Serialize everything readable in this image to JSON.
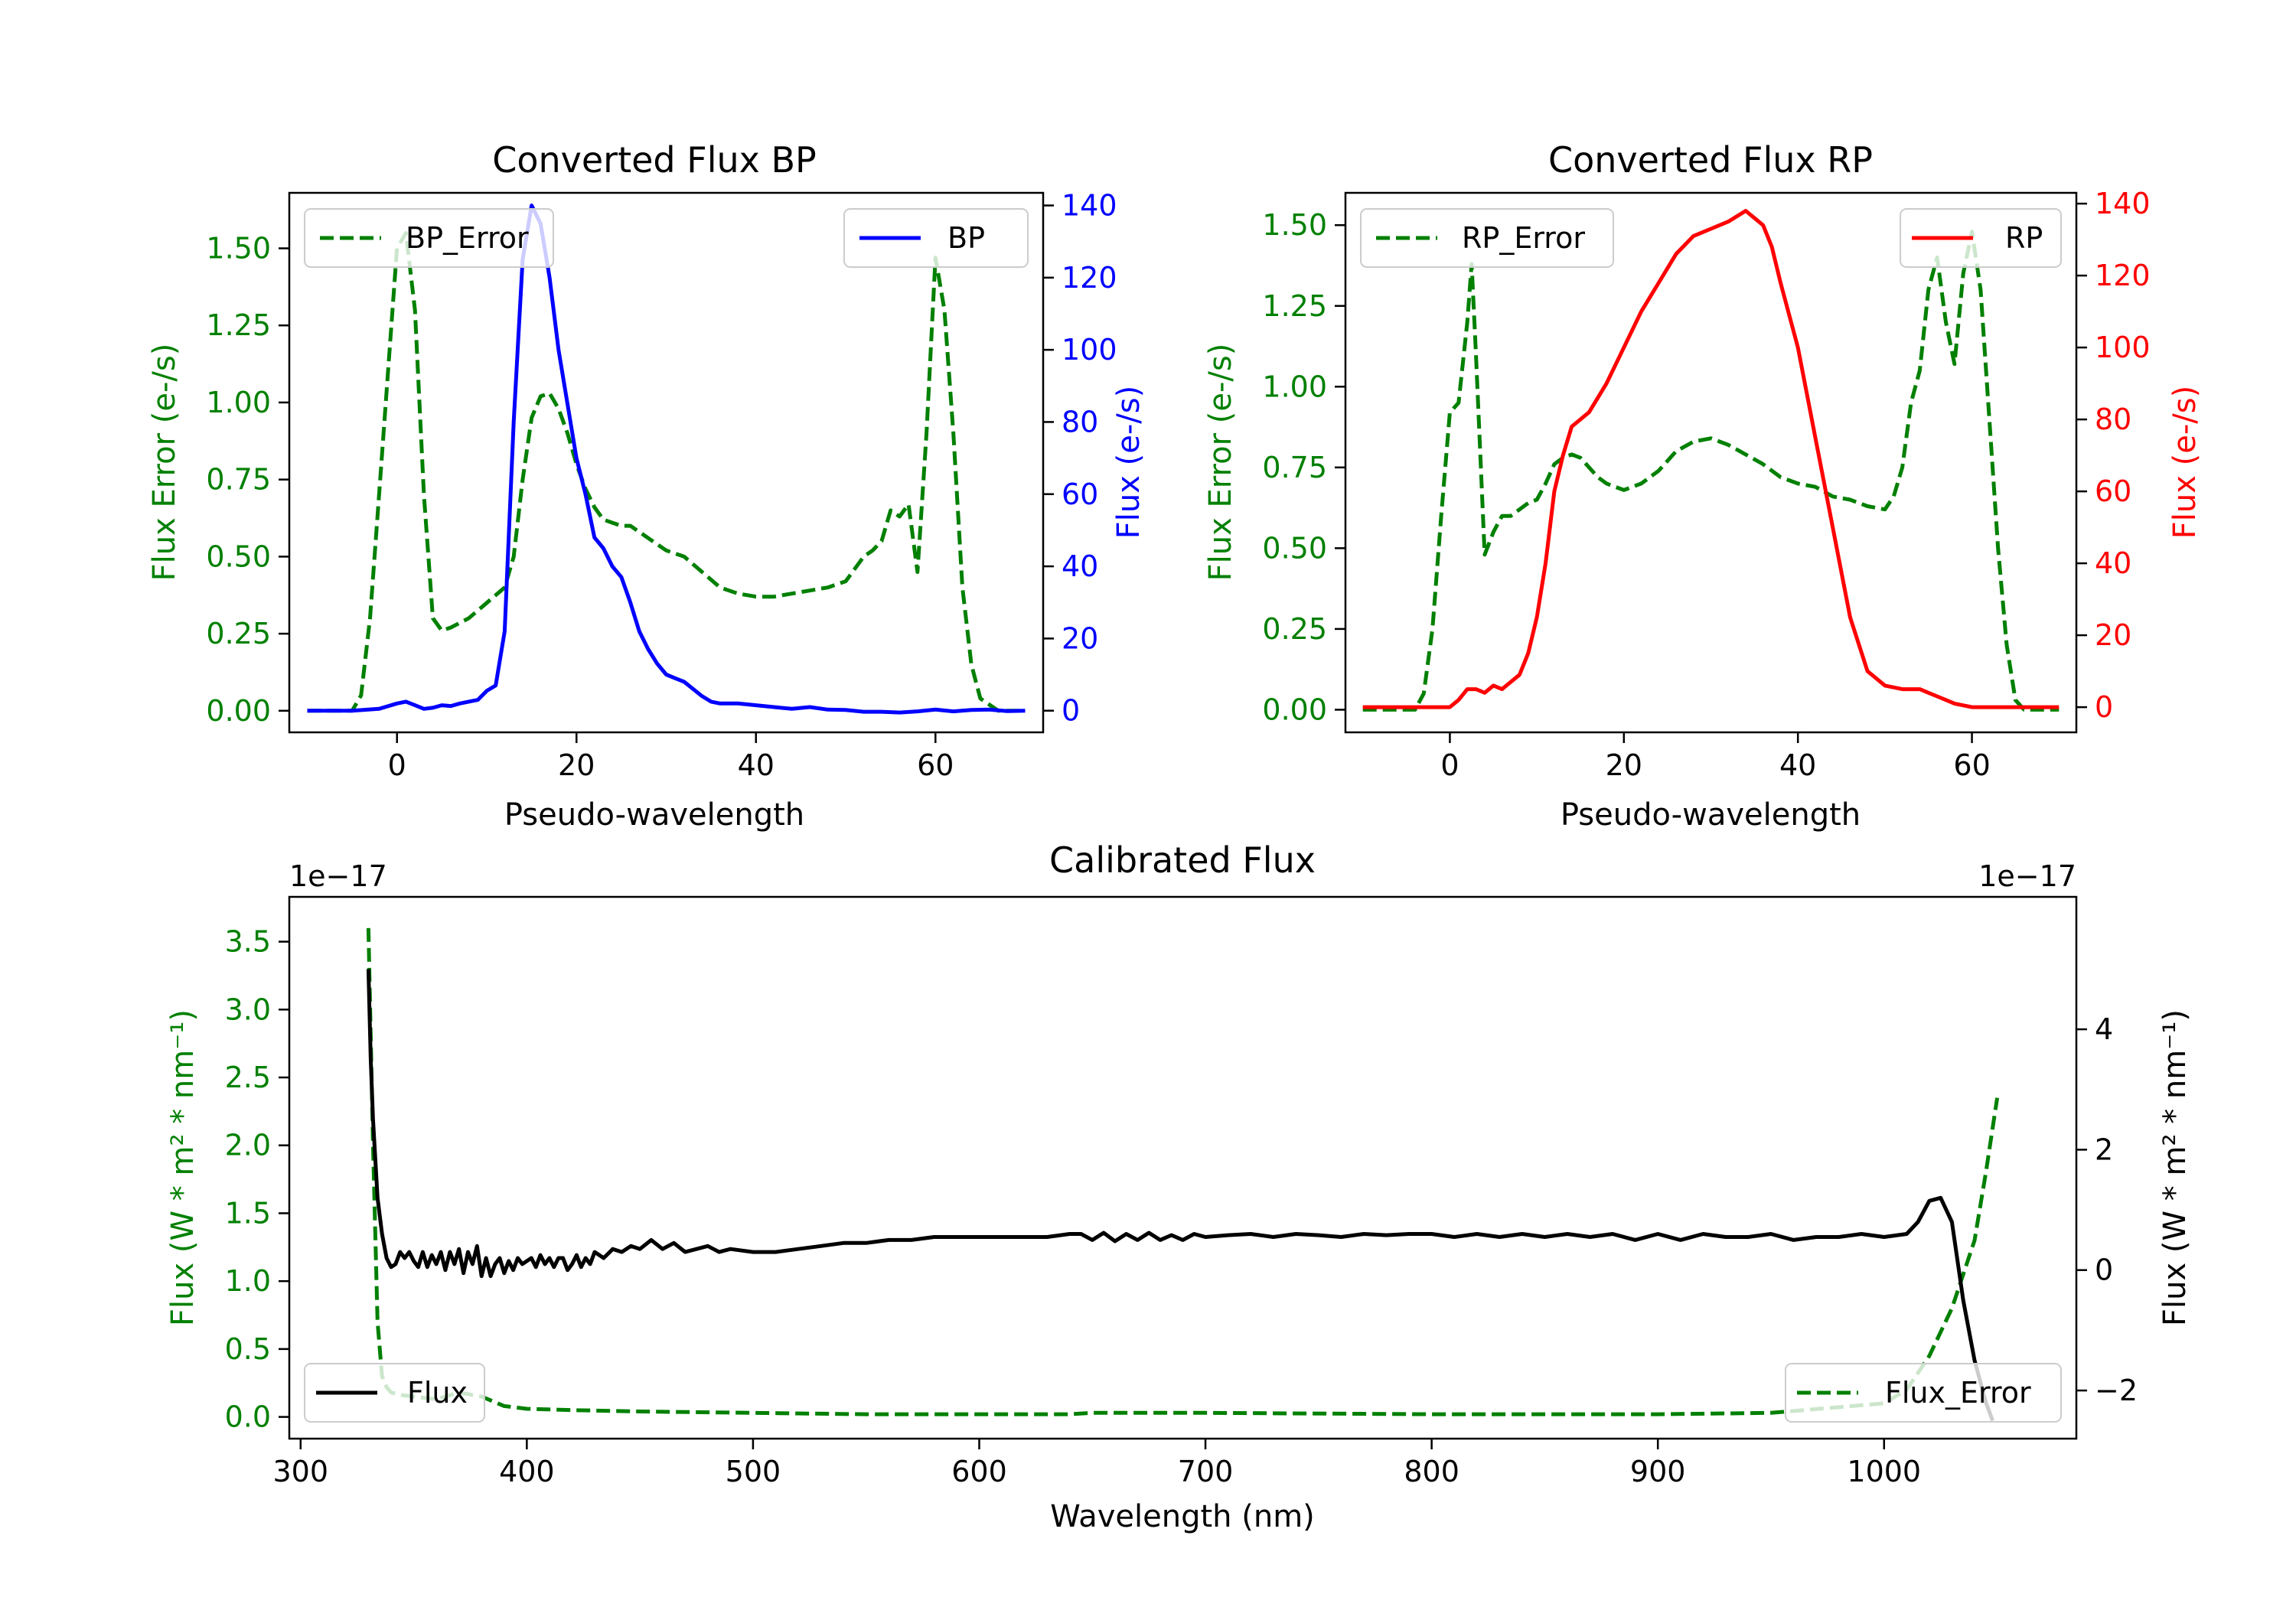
{
  "chart_data": [
    {
      "id": "bp",
      "type": "line",
      "title": "Converted Flux BP",
      "xlabel": "Pseudo-wavelength",
      "xlim": [
        -12,
        72
      ],
      "xticks": [
        0,
        20,
        40,
        60
      ],
      "left_axis": {
        "label": "Flux Error (e-/s)",
        "color": "#008000",
        "lim": [
          -0.07,
          1.68
        ],
        "ticks": [
          0.0,
          0.25,
          0.5,
          0.75,
          1.0,
          1.25,
          1.5
        ],
        "tick_labels": [
          "0.00",
          "0.25",
          "0.50",
          "0.75",
          "1.00",
          "1.25",
          "1.50"
        ]
      },
      "right_axis": {
        "label": "Flux (e-/s)",
        "color": "#0000ff",
        "lim": [
          -6,
          143.5
        ],
        "ticks": [
          0,
          20,
          40,
          60,
          80,
          100,
          120,
          140
        ],
        "tick_labels": [
          "0",
          "20",
          "40",
          "60",
          "80",
          "100",
          "120",
          "140"
        ]
      },
      "series": [
        {
          "name": "BP_Error",
          "axis": "left",
          "color": "#008000",
          "dash": true,
          "x": [
            -10,
            -7,
            -5,
            -4,
            -3,
            -2,
            -1,
            0,
            1,
            2,
            3,
            4,
            5,
            6,
            8,
            10,
            12,
            13,
            14,
            15,
            16,
            17,
            18,
            19,
            20,
            21,
            22,
            23,
            24,
            25,
            26,
            27,
            28,
            30,
            32,
            34,
            36,
            38,
            40,
            42,
            44,
            46,
            48,
            50,
            52,
            53,
            54,
            55,
            56,
            57,
            58,
            59,
            60,
            61,
            62,
            63,
            64,
            65,
            67,
            70
          ],
          "y": [
            0,
            0,
            0,
            0.05,
            0.3,
            0.7,
            1.1,
            1.5,
            1.55,
            1.3,
            0.7,
            0.3,
            0.26,
            0.27,
            0.3,
            0.35,
            0.4,
            0.5,
            0.75,
            0.95,
            1.02,
            1.03,
            0.98,
            0.9,
            0.8,
            0.72,
            0.66,
            0.62,
            0.61,
            0.6,
            0.6,
            0.58,
            0.56,
            0.52,
            0.5,
            0.45,
            0.4,
            0.38,
            0.37,
            0.37,
            0.38,
            0.39,
            0.4,
            0.42,
            0.5,
            0.52,
            0.55,
            0.65,
            0.63,
            0.67,
            0.45,
            0.9,
            1.47,
            1.3,
            0.9,
            0.4,
            0.15,
            0.04,
            0,
            0
          ]
        },
        {
          "name": "BP",
          "axis": "right",
          "color": "#0000ff",
          "dash": false,
          "x": [
            -10,
            -5,
            -2,
            0,
            1,
            2,
            3,
            4,
            5,
            6,
            7,
            8,
            9,
            10,
            11,
            12,
            13,
            14,
            15,
            16,
            17,
            18,
            19,
            20,
            21,
            22,
            23,
            24,
            25,
            26,
            27,
            28,
            29,
            30,
            31,
            32,
            33,
            34,
            35,
            36,
            38,
            40,
            42,
            44,
            46,
            48,
            50,
            52,
            54,
            56,
            58,
            60,
            62,
            64,
            66,
            68,
            70
          ],
          "y": [
            0,
            0,
            0.5,
            2,
            2.5,
            1.5,
            0.5,
            0.8,
            1.5,
            1.3,
            2,
            2.5,
            3,
            5.5,
            7,
            22,
            80,
            125,
            140,
            135,
            120,
            100,
            85,
            70,
            60,
            48,
            45,
            40,
            37,
            30,
            22,
            17,
            13,
            10,
            9,
            8,
            6,
            4,
            2.5,
            2,
            2,
            1.5,
            1,
            0.5,
            1,
            0.3,
            0.2,
            -0.3,
            -0.3,
            -0.5,
            -0.2,
            0.3,
            -0.2,
            0.2,
            0.3,
            -0.1,
            0
          ]
        }
      ],
      "legends": [
        {
          "text": "BP_Error",
          "position": "upper-left",
          "series": "BP_Error"
        },
        {
          "text": "BP",
          "position": "upper-right",
          "series": "BP"
        }
      ]
    },
    {
      "id": "rp",
      "type": "line",
      "title": "Converted Flux RP",
      "xlabel": "Pseudo-wavelength",
      "xlim": [
        -12,
        72
      ],
      "xticks": [
        0,
        20,
        40,
        60
      ],
      "left_axis": {
        "label": "Flux Error (e-/s)",
        "color": "#008000",
        "lim": [
          -0.07,
          1.6
        ],
        "ticks": [
          0.0,
          0.25,
          0.5,
          0.75,
          1.0,
          1.25,
          1.5
        ],
        "tick_labels": [
          "0.00",
          "0.25",
          "0.50",
          "0.75",
          "1.00",
          "1.25",
          "1.50"
        ]
      },
      "right_axis": {
        "label": "Flux (e-/s)",
        "color": "#ff0000",
        "lim": [
          -7,
          143
        ],
        "ticks": [
          0,
          20,
          40,
          60,
          80,
          100,
          120,
          140
        ],
        "tick_labels": [
          "0",
          "20",
          "40",
          "60",
          "80",
          "100",
          "120",
          "140"
        ]
      },
      "series": [
        {
          "name": "RP_Error",
          "axis": "left",
          "color": "#008000",
          "dash": true,
          "x": [
            -10,
            -6,
            -4,
            -3,
            -2,
            -1,
            0,
            1,
            2,
            2.5,
            3,
            4,
            5,
            6,
            7,
            8,
            9,
            10,
            11,
            12,
            13,
            14,
            15,
            16,
            17,
            18,
            20,
            22,
            24,
            26,
            28,
            30,
            32,
            34,
            36,
            38,
            40,
            42,
            44,
            46,
            48,
            50,
            51,
            52,
            53,
            54,
            55,
            56,
            57,
            58,
            59,
            60,
            61,
            62,
            63,
            64,
            65,
            66,
            68,
            70
          ],
          "y": [
            0,
            0,
            0,
            0.05,
            0.25,
            0.6,
            0.92,
            0.95,
            1.2,
            1.38,
            1.1,
            0.48,
            0.55,
            0.6,
            0.6,
            0.62,
            0.64,
            0.65,
            0.7,
            0.76,
            0.78,
            0.79,
            0.78,
            0.75,
            0.72,
            0.7,
            0.68,
            0.7,
            0.74,
            0.8,
            0.83,
            0.84,
            0.82,
            0.79,
            0.76,
            0.72,
            0.7,
            0.69,
            0.66,
            0.65,
            0.63,
            0.62,
            0.66,
            0.75,
            0.95,
            1.05,
            1.3,
            1.4,
            1.2,
            1.07,
            1.35,
            1.48,
            1.3,
            0.9,
            0.5,
            0.2,
            0.03,
            0,
            0,
            0
          ]
        },
        {
          "name": "RP",
          "axis": "right",
          "color": "#ff0000",
          "dash": false,
          "x": [
            -10,
            -4,
            -2,
            0,
            1,
            2,
            3,
            4,
            5,
            6,
            7,
            8,
            9,
            10,
            11,
            12,
            13,
            14,
            15,
            16,
            18,
            20,
            22,
            24,
            26,
            28,
            30,
            32,
            34,
            36,
            37,
            38,
            40,
            42,
            44,
            46,
            48,
            50,
            52,
            54,
            55,
            56,
            57,
            58,
            60,
            62,
            64,
            66,
            68,
            70
          ],
          "y": [
            0,
            0,
            0,
            0,
            2,
            5,
            5,
            4,
            6,
            5,
            7,
            9,
            15,
            25,
            40,
            60,
            70,
            78,
            80,
            82,
            90,
            100,
            110,
            118,
            126,
            131,
            133,
            135,
            138,
            134,
            128,
            118,
            100,
            75,
            50,
            25,
            10,
            6,
            5,
            5,
            4,
            3,
            2,
            1,
            0,
            0,
            0,
            0,
            0,
            0
          ]
        }
      ],
      "legends": [
        {
          "text": "RP_Error",
          "position": "upper-left",
          "series": "RP_Error"
        },
        {
          "text": "RP",
          "position": "upper-right",
          "series": "RP"
        }
      ]
    },
    {
      "id": "cal",
      "type": "line",
      "title": "Calibrated Flux",
      "xlabel": "Wavelength (nm)",
      "xlim": [
        295,
        1085
      ],
      "xticks": [
        300,
        400,
        500,
        600,
        700,
        800,
        900,
        1000
      ],
      "left_axis": {
        "label": "Flux (W * m² * nm⁻¹)",
        "color": "#008000",
        "offset_text": "1e−17",
        "lim": [
          -0.16,
          3.83
        ],
        "ticks": [
          0.0,
          0.5,
          1.0,
          1.5,
          2.0,
          2.5,
          3.0,
          3.5
        ],
        "tick_labels": [
          "0.0",
          "0.5",
          "1.0",
          "1.5",
          "2.0",
          "2.5",
          "3.0",
          "3.5"
        ]
      },
      "right_axis": {
        "label": "Flux (W * m² * nm⁻¹)",
        "color": "#000000",
        "offset_text": "1e−17",
        "lim": [
          -2.8,
          6.2
        ],
        "ticks": [
          -2,
          0,
          2,
          4
        ],
        "tick_labels": [
          "−2",
          "0",
          "2",
          "4"
        ]
      },
      "series": [
        {
          "name": "Flux_Error",
          "axis": "left",
          "color": "#008000",
          "dash": true,
          "x": [
            330,
            332,
            334,
            336,
            338,
            340,
            345,
            350,
            360,
            370,
            380,
            390,
            400,
            420,
            450,
            500,
            550,
            600,
            640,
            650,
            700,
            800,
            900,
            950,
            1000,
            1010,
            1020,
            1030,
            1040,
            1045,
            1050
          ],
          "y": [
            3.6,
            2.0,
            0.7,
            0.3,
            0.22,
            0.18,
            0.16,
            0.15,
            0.13,
            0.18,
            0.15,
            0.08,
            0.06,
            0.05,
            0.04,
            0.03,
            0.02,
            0.02,
            0.02,
            0.03,
            0.03,
            0.02,
            0.02,
            0.03,
            0.1,
            0.2,
            0.45,
            0.8,
            1.3,
            1.8,
            2.35
          ]
        },
        {
          "name": "Flux",
          "axis": "right",
          "color": "#000000",
          "dash": false,
          "x": [
            330,
            331,
            332,
            334,
            336,
            338,
            340,
            342,
            344,
            346,
            348,
            350,
            352,
            354,
            356,
            358,
            360,
            362,
            364,
            366,
            368,
            370,
            372,
            374,
            376,
            378,
            380,
            382,
            384,
            386,
            388,
            390,
            392,
            394,
            396,
            398,
            400,
            402,
            404,
            406,
            408,
            410,
            412,
            414,
            416,
            418,
            420,
            422,
            424,
            426,
            428,
            430,
            434,
            438,
            442,
            446,
            450,
            455,
            460,
            465,
            470,
            475,
            480,
            485,
            490,
            500,
            510,
            520,
            530,
            540,
            550,
            560,
            570,
            580,
            590,
            600,
            610,
            620,
            630,
            640,
            645,
            650,
            655,
            660,
            665,
            670,
            675,
            680,
            685,
            690,
            695,
            700,
            710,
            720,
            730,
            740,
            750,
            760,
            770,
            780,
            790,
            800,
            810,
            820,
            830,
            840,
            850,
            860,
            870,
            880,
            890,
            900,
            910,
            920,
            930,
            940,
            950,
            960,
            970,
            980,
            990,
            1000,
            1010,
            1015,
            1020,
            1025,
            1030,
            1035,
            1040,
            1045,
            1048
          ],
          "y": [
            5.0,
            3.5,
            2.5,
            1.2,
            0.6,
            0.2,
            0.05,
            0.1,
            0.3,
            0.2,
            0.3,
            0.15,
            0.05,
            0.3,
            0.05,
            0.25,
            0.1,
            0.3,
            0.0,
            0.3,
            0.1,
            0.35,
            -0.05,
            0.3,
            0.1,
            0.4,
            -0.1,
            0.2,
            -0.1,
            0.1,
            0.2,
            -0.05,
            0.15,
            0.0,
            0.2,
            0.1,
            0.15,
            0.2,
            0.05,
            0.25,
            0.1,
            0.2,
            0.05,
            0.2,
            0.2,
            0.0,
            0.1,
            0.25,
            0.05,
            0.2,
            0.1,
            0.3,
            0.2,
            0.35,
            0.3,
            0.4,
            0.35,
            0.5,
            0.35,
            0.45,
            0.3,
            0.35,
            0.4,
            0.3,
            0.35,
            0.3,
            0.3,
            0.35,
            0.4,
            0.45,
            0.45,
            0.5,
            0.5,
            0.55,
            0.55,
            0.55,
            0.55,
            0.55,
            0.55,
            0.6,
            0.6,
            0.5,
            0.62,
            0.48,
            0.6,
            0.5,
            0.62,
            0.5,
            0.58,
            0.5,
            0.6,
            0.55,
            0.58,
            0.6,
            0.55,
            0.6,
            0.58,
            0.55,
            0.6,
            0.58,
            0.6,
            0.6,
            0.55,
            0.6,
            0.55,
            0.6,
            0.55,
            0.6,
            0.55,
            0.6,
            0.5,
            0.6,
            0.5,
            0.6,
            0.55,
            0.55,
            0.6,
            0.5,
            0.55,
            0.55,
            0.6,
            0.55,
            0.6,
            0.8,
            1.15,
            1.2,
            0.8,
            -0.5,
            -1.5,
            -2.2,
            -2.5
          ]
        }
      ],
      "legends": [
        {
          "text": "Flux",
          "position": "lower-left",
          "series": "Flux"
        },
        {
          "text": "Flux_Error",
          "position": "lower-right",
          "series": "Flux_Error"
        }
      ]
    }
  ]
}
